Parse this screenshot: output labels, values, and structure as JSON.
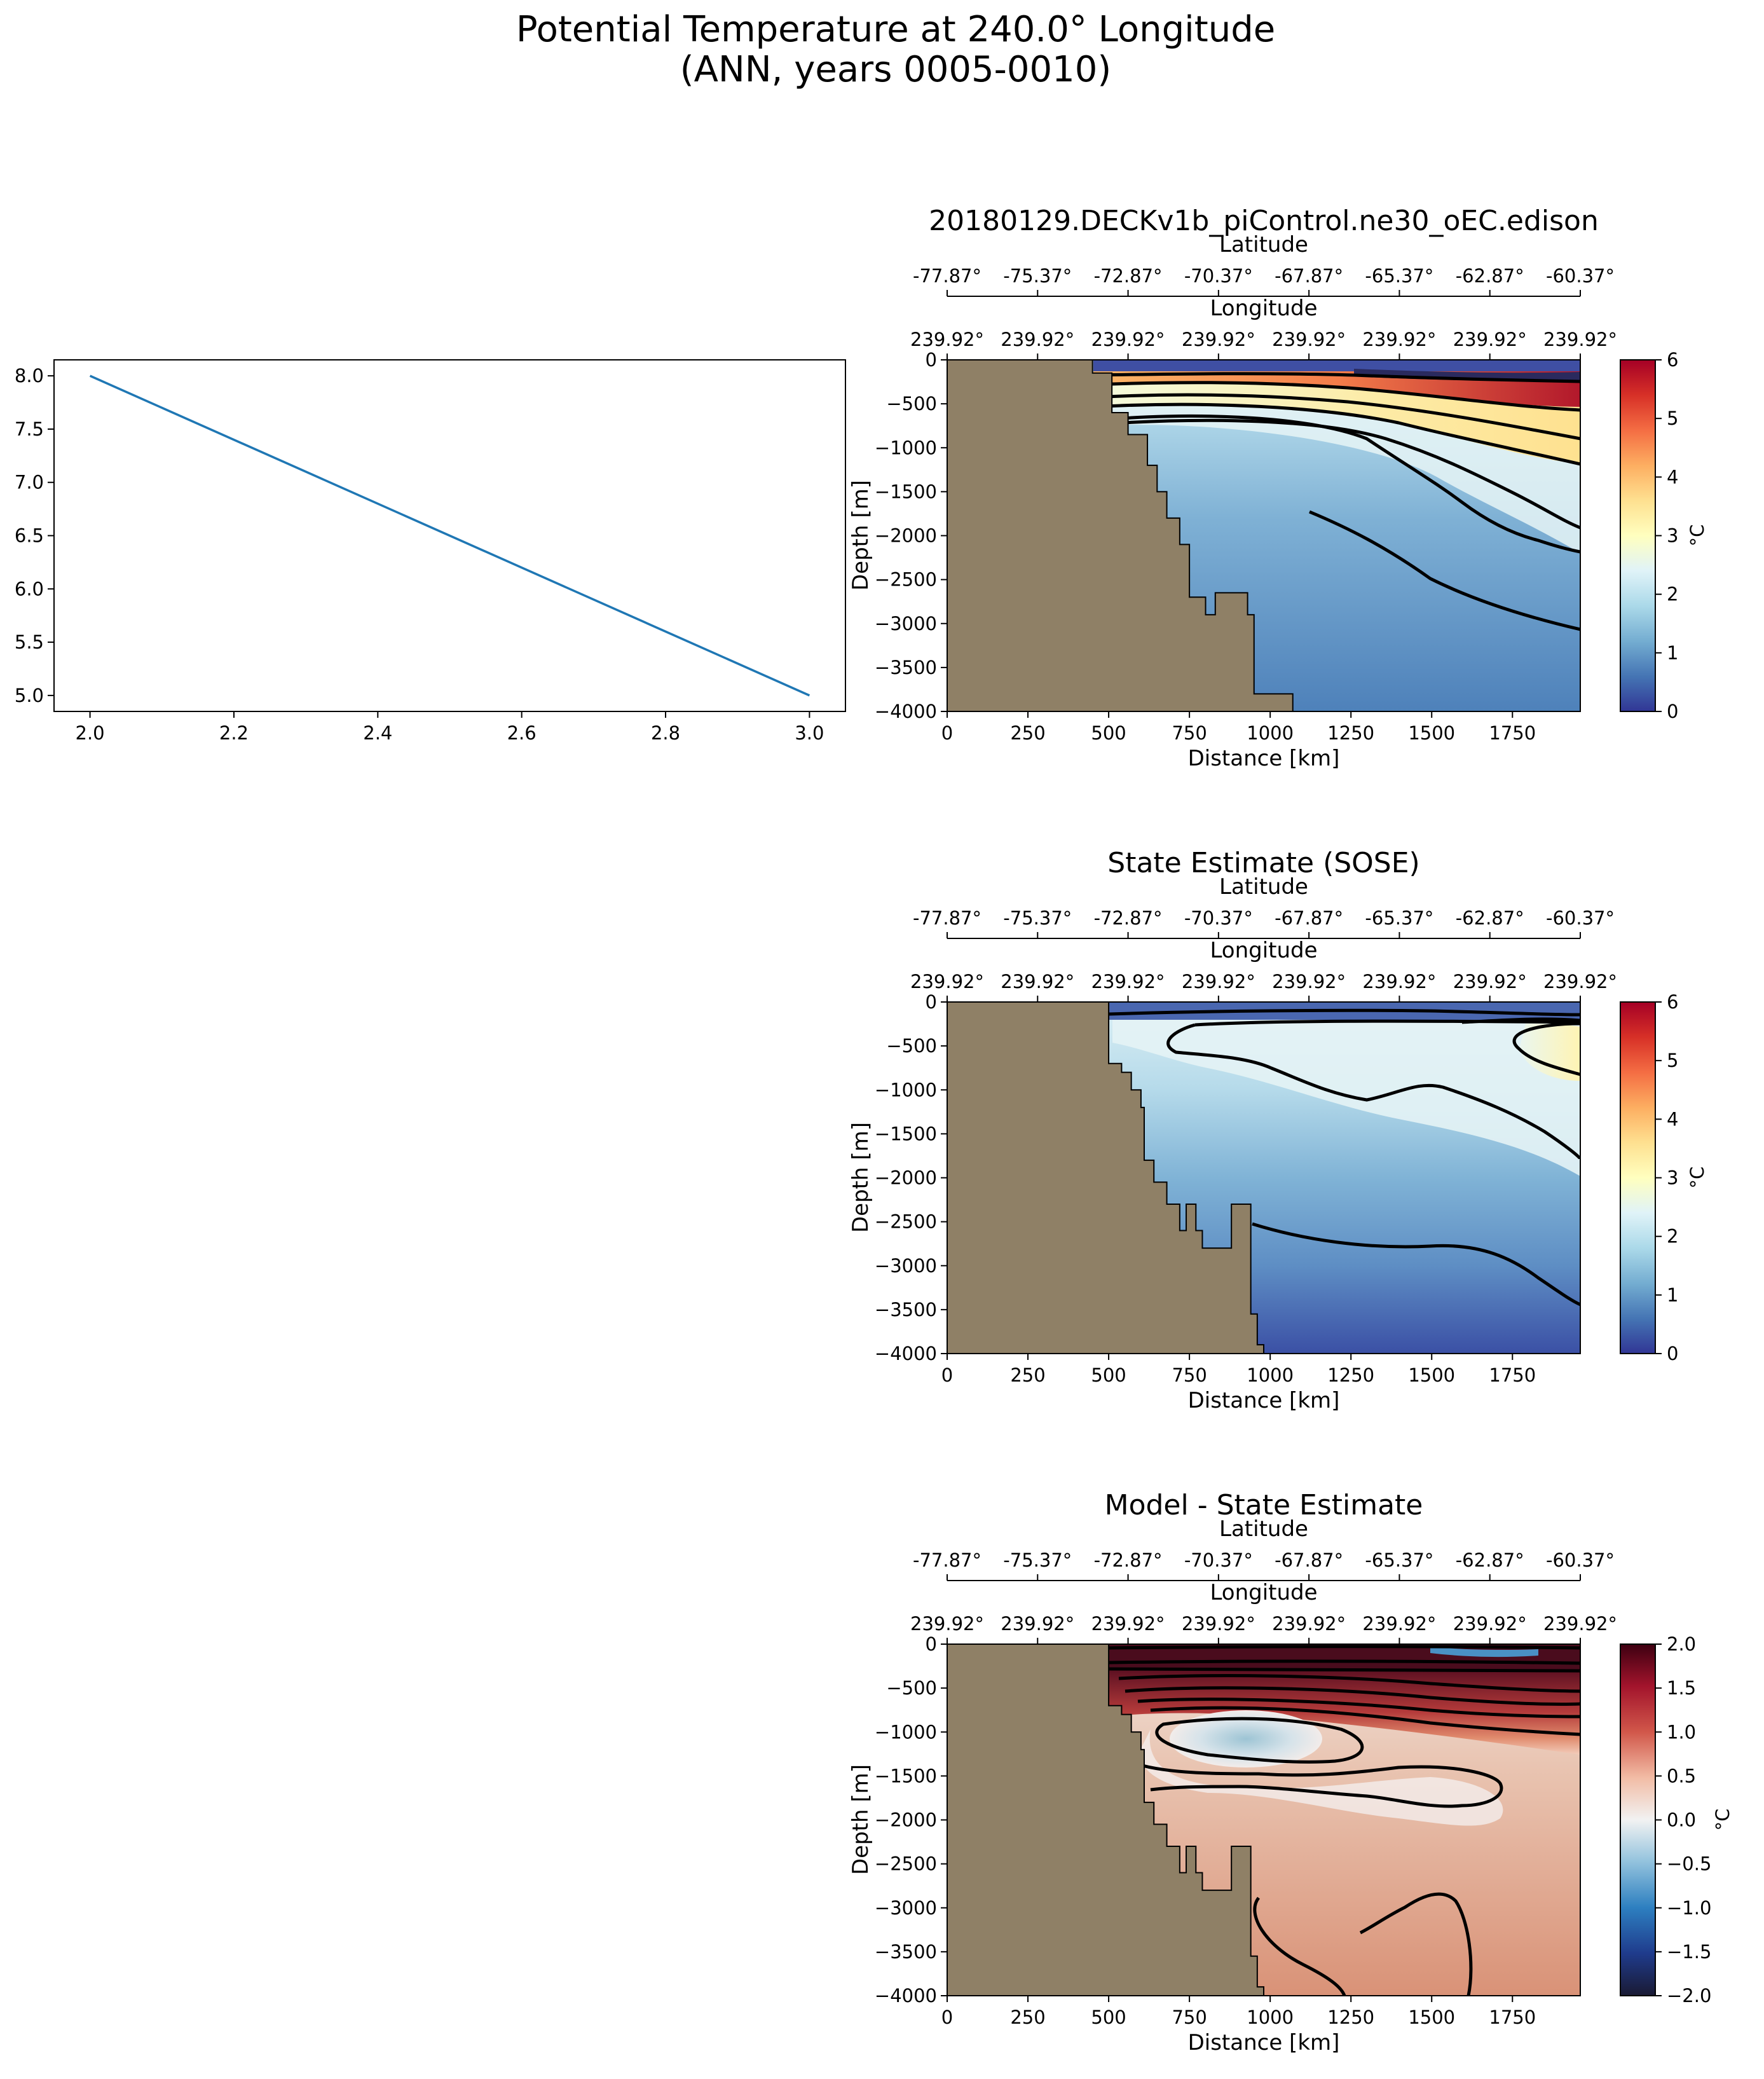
{
  "figure": {
    "suptitle_line1": "Potential Temperature at 240.0° Longitude",
    "suptitle_line2": "(ANN, years 0005-0010)"
  },
  "colors": {
    "land": "#8f8066",
    "line_series": "#1f77b4",
    "contour": "#000000",
    "temp_cmap": "RdYlBu_r",
    "diff_cmap": "RdBu_r"
  },
  "chart_data": [
    {
      "type": "line",
      "title": "",
      "xlabel": "",
      "ylabel": "",
      "xlim": [
        1.95,
        3.05
      ],
      "ylim": [
        4.85,
        8.15
      ],
      "x_ticks": [
        "2.0",
        "2.2",
        "2.4",
        "2.6",
        "2.8",
        "3.0"
      ],
      "y_ticks": [
        "5.0",
        "5.5",
        "6.0",
        "6.5",
        "7.0",
        "7.5",
        "8.0"
      ],
      "series": [
        {
          "x": [
            2.0,
            3.0
          ],
          "y": [
            8.0,
            5.0
          ]
        }
      ]
    },
    {
      "type": "heatmap",
      "title": "20180129.DECKv1b_piControl.ne30_oEC.edison",
      "xlabel": "Distance [km]",
      "ylabel": "Depth [m]",
      "xlim": [
        0,
        1960
      ],
      "ylim": [
        -4000,
        0
      ],
      "x_ticks": [
        "0",
        "250",
        "500",
        "750",
        "1000",
        "1250",
        "1500",
        "1750"
      ],
      "y_ticks": [
        "0",
        "−500",
        "−1000",
        "−1500",
        "−2000",
        "−2500",
        "−3000",
        "−3500",
        "−4000"
      ],
      "lat_label": "Latitude",
      "lat_ticks": [
        "-77.87°",
        "-75.37°",
        "-72.87°",
        "-70.37°",
        "-67.87°",
        "-65.37°",
        "-62.87°",
        "-60.37°"
      ],
      "lon_label": "Longitude",
      "lon_ticks": [
        "239.92°",
        "239.92°",
        "239.92°",
        "239.92°",
        "239.92°",
        "239.92°",
        "239.92°",
        "239.92°"
      ],
      "colorbar_label": "°C",
      "colorbar_ticks": [
        "0",
        "1",
        "2",
        "3",
        "4",
        "5",
        "6"
      ],
      "colorbar_range": [
        0,
        6
      ],
      "bathymetry": [
        [
          0,
          0
        ],
        [
          450,
          0
        ],
        [
          450,
          -150
        ],
        [
          510,
          -150
        ],
        [
          510,
          -600
        ],
        [
          560,
          -600
        ],
        [
          560,
          -850
        ],
        [
          620,
          -850
        ],
        [
          620,
          -1200
        ],
        [
          650,
          -1200
        ],
        [
          650,
          -1500
        ],
        [
          680,
          -1500
        ],
        [
          680,
          -1800
        ],
        [
          720,
          -1800
        ],
        [
          720,
          -2100
        ],
        [
          750,
          -2100
        ],
        [
          750,
          -2700
        ],
        [
          800,
          -2700
        ],
        [
          800,
          -2900
        ],
        [
          830,
          -2900
        ],
        [
          830,
          -2650
        ],
        [
          930,
          -2650
        ],
        [
          930,
          -2900
        ],
        [
          950,
          -2900
        ],
        [
          950,
          -3800
        ],
        [
          1070,
          -3800
        ],
        [
          1070,
          -4000
        ],
        [
          0,
          -4000
        ]
      ]
    },
    {
      "type": "heatmap",
      "title": "State Estimate (SOSE)",
      "xlabel": "Distance [km]",
      "ylabel": "Depth [m]",
      "xlim": [
        0,
        1960
      ],
      "ylim": [
        -4000,
        0
      ],
      "x_ticks": [
        "0",
        "250",
        "500",
        "750",
        "1000",
        "1250",
        "1500",
        "1750"
      ],
      "y_ticks": [
        "0",
        "−500",
        "−1000",
        "−1500",
        "−2000",
        "−2500",
        "−3000",
        "−3500",
        "−4000"
      ],
      "lat_label": "Latitude",
      "lat_ticks": [
        "-77.87°",
        "-75.37°",
        "-72.87°",
        "-70.37°",
        "-67.87°",
        "-65.37°",
        "-62.87°",
        "-60.37°"
      ],
      "lon_label": "Longitude",
      "lon_ticks": [
        "239.92°",
        "239.92°",
        "239.92°",
        "239.92°",
        "239.92°",
        "239.92°",
        "239.92°",
        "239.92°"
      ],
      "colorbar_label": "°C",
      "colorbar_ticks": [
        "0",
        "1",
        "2",
        "3",
        "4",
        "5",
        "6"
      ],
      "colorbar_range": [
        0,
        6
      ],
      "bathymetry": [
        [
          0,
          0
        ],
        [
          500,
          0
        ],
        [
          500,
          -700
        ],
        [
          540,
          -700
        ],
        [
          540,
          -800
        ],
        [
          570,
          -800
        ],
        [
          570,
          -1000
        ],
        [
          600,
          -1000
        ],
        [
          600,
          -1200
        ],
        [
          610,
          -1200
        ],
        [
          610,
          -1800
        ],
        [
          640,
          -1800
        ],
        [
          640,
          -2050
        ],
        [
          680,
          -2050
        ],
        [
          680,
          -2300
        ],
        [
          720,
          -2300
        ],
        [
          720,
          -2600
        ],
        [
          740,
          -2600
        ],
        [
          740,
          -2300
        ],
        [
          770,
          -2300
        ],
        [
          770,
          -2600
        ],
        [
          790,
          -2600
        ],
        [
          790,
          -2800
        ],
        [
          880,
          -2800
        ],
        [
          880,
          -2300
        ],
        [
          940,
          -2300
        ],
        [
          940,
          -3550
        ],
        [
          960,
          -3550
        ],
        [
          960,
          -3900
        ],
        [
          980,
          -3900
        ],
        [
          980,
          -4000
        ],
        [
          0,
          -4000
        ]
      ]
    },
    {
      "type": "heatmap",
      "title": "Model - State Estimate",
      "xlabel": "Distance [km]",
      "ylabel": "Depth [m]",
      "xlim": [
        0,
        1960
      ],
      "ylim": [
        -4000,
        0
      ],
      "x_ticks": [
        "0",
        "250",
        "500",
        "750",
        "1000",
        "1250",
        "1500",
        "1750"
      ],
      "y_ticks": [
        "0",
        "−500",
        "−1000",
        "−1500",
        "−2000",
        "−2500",
        "−3000",
        "−3500",
        "−4000"
      ],
      "lat_label": "Latitude",
      "lat_ticks": [
        "-77.87°",
        "-75.37°",
        "-72.87°",
        "-70.37°",
        "-67.87°",
        "-65.37°",
        "-62.87°",
        "-60.37°"
      ],
      "lon_label": "Longitude",
      "lon_ticks": [
        "239.92°",
        "239.92°",
        "239.92°",
        "239.92°",
        "239.92°",
        "239.92°",
        "239.92°",
        "239.92°"
      ],
      "colorbar_label": "°C",
      "colorbar_ticks": [
        "−2.0",
        "−1.5",
        "−1.0",
        "−0.5",
        "0.0",
        "0.5",
        "1.0",
        "1.5",
        "2.0"
      ],
      "colorbar_range": [
        -2,
        2
      ],
      "bathymetry": [
        [
          0,
          0
        ],
        [
          500,
          0
        ],
        [
          500,
          -700
        ],
        [
          540,
          -700
        ],
        [
          540,
          -800
        ],
        [
          570,
          -800
        ],
        [
          570,
          -1000
        ],
        [
          600,
          -1000
        ],
        [
          600,
          -1200
        ],
        [
          610,
          -1200
        ],
        [
          610,
          -1800
        ],
        [
          640,
          -1800
        ],
        [
          640,
          -2050
        ],
        [
          680,
          -2050
        ],
        [
          680,
          -2300
        ],
        [
          720,
          -2300
        ],
        [
          720,
          -2600
        ],
        [
          740,
          -2600
        ],
        [
          740,
          -2300
        ],
        [
          770,
          -2300
        ],
        [
          770,
          -2600
        ],
        [
          790,
          -2600
        ],
        [
          790,
          -2800
        ],
        [
          880,
          -2800
        ],
        [
          880,
          -2300
        ],
        [
          940,
          -2300
        ],
        [
          940,
          -3550
        ],
        [
          960,
          -3550
        ],
        [
          960,
          -3900
        ],
        [
          980,
          -3900
        ],
        [
          980,
          -4000
        ],
        [
          0,
          -4000
        ]
      ]
    }
  ]
}
